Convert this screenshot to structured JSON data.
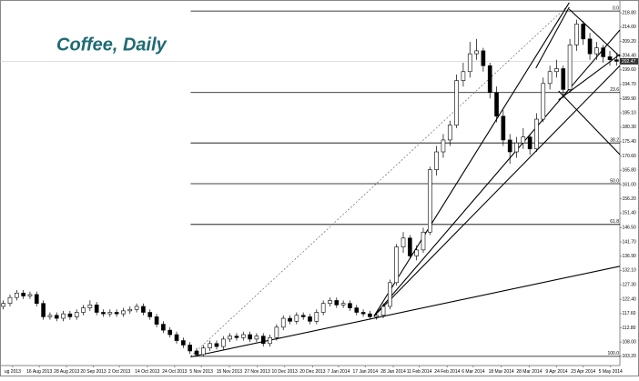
{
  "chart_data": {
    "type": "candlestick",
    "title": "Coffee, Daily",
    "x": [
      0,
      1,
      2,
      3,
      4,
      5,
      6,
      7,
      8,
      9,
      10,
      11,
      12,
      13,
      14,
      15,
      16,
      17,
      18,
      19,
      20,
      21,
      22,
      23,
      24,
      25,
      26,
      27,
      28,
      29,
      30,
      31,
      32,
      33,
      34,
      35,
      36,
      37,
      38,
      39,
      40,
      41,
      42,
      43,
      44,
      45,
      46,
      47,
      48,
      49,
      50,
      51,
      52,
      53,
      54,
      55,
      56,
      57,
      58,
      59,
      60,
      61,
      62,
      63,
      64,
      65,
      66,
      67,
      68,
      69,
      70,
      71,
      72,
      73,
      74,
      75,
      76,
      77,
      78,
      79,
      80,
      81,
      82,
      83,
      84,
      85,
      86,
      87,
      88,
      89,
      90,
      91,
      92
    ],
    "open": [
      120,
      121,
      123,
      124.5,
      123.5,
      124,
      121,
      116.5,
      117,
      116,
      117.5,
      116.5,
      118,
      119.5,
      120.5,
      118,
      117.5,
      118,
      117.5,
      118.5,
      119,
      120,
      118,
      116.5,
      114,
      112,
      110.5,
      108.5,
      107,
      105,
      103.8,
      106,
      107.5,
      106.5,
      109,
      110,
      109.5,
      110.5,
      109,
      110,
      107.5,
      109.5,
      113,
      116,
      115,
      117,
      116.5,
      115,
      118,
      121,
      122,
      120.5,
      121,
      119.5,
      118,
      117.5,
      116.5,
      117,
      120,
      128,
      140,
      143,
      137,
      139,
      145,
      166,
      172,
      176,
      181,
      196,
      199,
      205,
      206,
      201,
      192,
      184,
      176,
      172,
      175,
      177,
      173,
      183,
      195,
      199,
      200,
      193,
      208,
      215,
      210,
      205,
      207,
      204,
      203
    ],
    "high": [
      122,
      124,
      125.5,
      125.5,
      125,
      125,
      122,
      118,
      118,
      118.5,
      118.5,
      119,
      120.5,
      122,
      121.5,
      119,
      119,
      119,
      119.5,
      120,
      121,
      121,
      119,
      117.5,
      115,
      113,
      111.5,
      109.5,
      108,
      106,
      107,
      108.5,
      108.5,
      110,
      111,
      111,
      111.5,
      111.5,
      111,
      111,
      110.5,
      114,
      117,
      117,
      118,
      118,
      117.5,
      119,
      122,
      123,
      123,
      122,
      122,
      120.5,
      119,
      118.5,
      118,
      121,
      129,
      141,
      145,
      144,
      140.5,
      146.5,
      167,
      174,
      178,
      182.5,
      198,
      202,
      209,
      210,
      207,
      202,
      194,
      186,
      178,
      177,
      180,
      178,
      185,
      197,
      201,
      203,
      201,
      210,
      216.5,
      216,
      212,
      209,
      208,
      206,
      205
    ],
    "low": [
      119,
      120,
      122,
      122.5,
      122.5,
      120,
      115.5,
      115.5,
      115,
      115,
      115.5,
      115.5,
      117,
      118.5,
      117,
      116.5,
      116.5,
      116.5,
      116.5,
      117.5,
      118,
      117,
      115.5,
      113,
      111,
      109.5,
      107.5,
      106,
      104,
      103.2,
      103.2,
      105,
      105.5,
      105.5,
      108,
      108.5,
      108.5,
      108,
      108,
      106.5,
      106.5,
      108.5,
      112,
      114,
      114,
      115.5,
      114,
      114,
      117,
      120,
      119.5,
      119.5,
      118.5,
      117,
      116.5,
      115.5,
      115.5,
      116,
      119,
      127,
      138,
      136,
      135.5,
      138,
      144,
      164,
      170,
      174,
      180,
      194,
      197,
      203,
      199,
      190,
      182,
      174,
      168,
      170,
      173,
      171,
      172,
      182,
      193,
      197,
      190,
      192,
      206,
      208,
      203,
      203,
      202,
      201,
      201
    ],
    "close": [
      121,
      123,
      124.5,
      123.5,
      124,
      121,
      116.5,
      117,
      116,
      117.5,
      116.5,
      118,
      119.5,
      120.5,
      118,
      117.5,
      118,
      117.5,
      118.5,
      119,
      120,
      118,
      116.5,
      114,
      112,
      110.5,
      108.5,
      107,
      105,
      103.8,
      106,
      107.5,
      106.5,
      109,
      110,
      109.5,
      110.5,
      109,
      110,
      107.5,
      109.5,
      113,
      116,
      115,
      117,
      116.5,
      115,
      118,
      121,
      122,
      120.5,
      121,
      119.5,
      118,
      117.5,
      116.5,
      117,
      120,
      128,
      140,
      143,
      137,
      139,
      145,
      166,
      172,
      176,
      181,
      196,
      199,
      205,
      206,
      201,
      192,
      184,
      176,
      172,
      175,
      177,
      173,
      183,
      195,
      199,
      200,
      193,
      208,
      215,
      210,
      205,
      207,
      204,
      203,
      202.47
    ],
    "xlim": [
      -0.5,
      92.5
    ],
    "ylim": [
      100.1,
      223.1
    ],
    "xticks": [
      {
        "value": 1.4,
        "label": "ug 2013"
      },
      {
        "value": 5.4,
        "label": "16 Aug 2013"
      },
      {
        "value": 9.5,
        "label": "28 Aug 2013"
      },
      {
        "value": 13.5,
        "label": "20 Sep 2013"
      },
      {
        "value": 17.4,
        "label": "2 Oct 2013"
      },
      {
        "value": 21.6,
        "label": "14 Oct 2013"
      },
      {
        "value": 25.7,
        "label": "24 Oct 2013"
      },
      {
        "value": 29.7,
        "label": "5 Nov 2013"
      },
      {
        "value": 33.9,
        "label": "15 Nov 2013"
      },
      {
        "value": 38.1,
        "label": "27 Nov 2013"
      },
      {
        "value": 42.2,
        "label": "10 Dec 2013"
      },
      {
        "value": 46.4,
        "label": "20 Dec 2013"
      },
      {
        "value": 50.3,
        "label": "7 Jan 2014"
      },
      {
        "value": 54.3,
        "label": "17 Jan 2014"
      },
      {
        "value": 58.5,
        "label": "28 Jan 2014"
      },
      {
        "value": 62.4,
        "label": "11 Feb 2014"
      },
      {
        "value": 66.6,
        "label": "24 Feb 2014"
      },
      {
        "value": 70.5,
        "label": "6 Mar 2014"
      },
      {
        "value": 74.7,
        "label": "18 Mar 2014"
      },
      {
        "value": 78.9,
        "label": "28 Mar 2014"
      },
      {
        "value": 83,
        "label": "9 Apr 2014"
      },
      {
        "value": 87,
        "label": "23 Apr 2014"
      },
      {
        "value": 91.1,
        "label": "5 May 2014"
      }
    ],
    "yticks": [
      {
        "value": 218.8,
        "label": "218.80"
      },
      {
        "value": 214,
        "label": "214.00"
      },
      {
        "value": 209.2,
        "label": "209.20"
      },
      {
        "value": 204.4,
        "label": "204.40"
      },
      {
        "value": 199.6,
        "label": "199.60"
      },
      {
        "value": 194.7,
        "label": "194.70"
      },
      {
        "value": 189.9,
        "label": "189.90"
      },
      {
        "value": 185.1,
        "label": "185.10"
      },
      {
        "value": 180.3,
        "label": "180.30"
      },
      {
        "value": 175.4,
        "label": "175.40"
      },
      {
        "value": 170.6,
        "label": "170.60"
      },
      {
        "value": 165.8,
        "label": "165.80"
      },
      {
        "value": 161,
        "label": "161.00"
      },
      {
        "value": 156.2,
        "label": "156.20"
      },
      {
        "value": 151.4,
        "label": "151.40"
      },
      {
        "value": 146.5,
        "label": "146.50"
      },
      {
        "value": 141.7,
        "label": "141.70"
      },
      {
        "value": 136.9,
        "label": "136.90"
      },
      {
        "value": 132.1,
        "label": "132.10"
      },
      {
        "value": 127.3,
        "label": "127.30"
      },
      {
        "value": 122.4,
        "label": "122.40"
      },
      {
        "value": 117.6,
        "label": "117.60"
      },
      {
        "value": 112.8,
        "label": "112.80"
      },
      {
        "value": 108,
        "label": "108.00"
      },
      {
        "value": 103.2,
        "label": "103.20"
      }
    ],
    "fib_high": 219.4,
    "fib_low": 103.2,
    "fib_start": 28.1,
    "fib_levels": [
      {
        "value": 0,
        "label": "0.0"
      },
      23.6,
      38.2,
      {
        "value": 50,
        "label": "50.0"
      },
      61.8,
      {
        "value": 100,
        "label": "100.0"
      }
    ],
    "trendlines": [
      [
        28.1,
        103,
        92.5,
        133.5
      ],
      [
        55.6,
        116.7,
        84.9,
        222.2
      ],
      [
        55.6,
        116.7,
        92.5,
        213
      ],
      [
        55.6,
        116.7,
        92.5,
        201
      ],
      [
        79.9,
        200.2,
        84.9,
        220.7
      ],
      [
        84.9,
        220,
        92.5,
        204.1
      ],
      [
        83.3,
        192.5,
        92.5,
        171.1
      ],
      [
        83.3,
        189.5,
        92.5,
        204.8
      ]
    ],
    "dotted_line": [
      28.1,
      103.2,
      84.9,
      221.6
    ],
    "up_color": "#ffffff",
    "down_color": "#000000",
    "title_color": "#1f6b73"
  }
}
